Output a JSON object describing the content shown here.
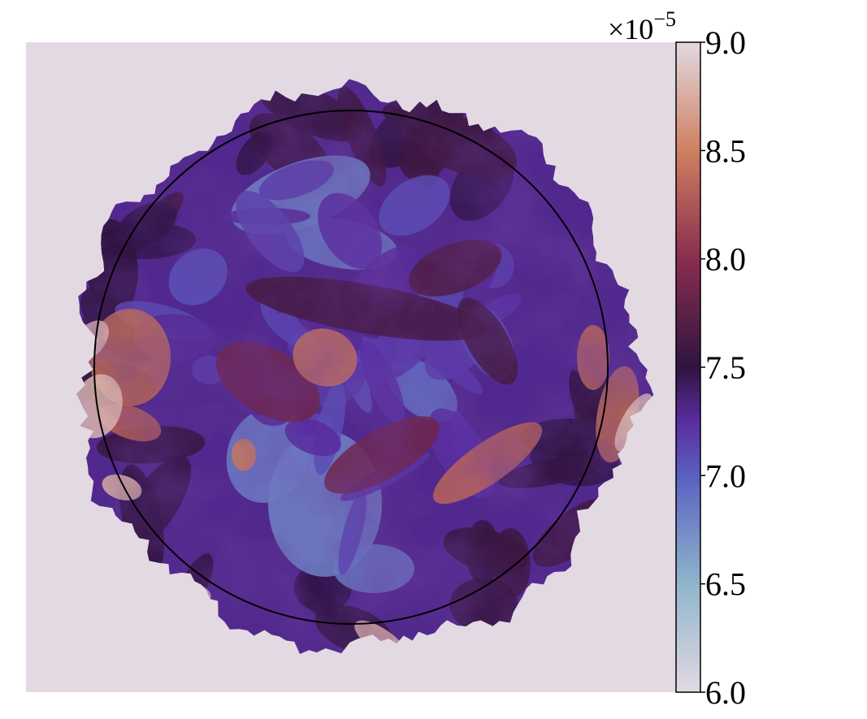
{
  "chart_data": {
    "type": "heatmap",
    "title": "",
    "xlabel": "",
    "ylabel": "",
    "field": "turbulent spherical blob, cross-section",
    "colormap": {
      "name": "twilight (lower half)",
      "stops": [
        {
          "value": 6.0,
          "color": "#e2d9e2"
        },
        {
          "value": 6.5,
          "color": "#8fb5cc"
        },
        {
          "value": 7.0,
          "color": "#5a60c2"
        },
        {
          "value": 7.25,
          "color": "#5a2da0"
        },
        {
          "value": 7.5,
          "color": "#2f1440"
        },
        {
          "value": 8.0,
          "color": "#8a2d4f"
        },
        {
          "value": 8.5,
          "color": "#cf8060"
        },
        {
          "value": 9.0,
          "color": "#e2d9e2"
        }
      ]
    },
    "colorbar": {
      "range": [
        6.0,
        9.0
      ],
      "ticks": [
        6.0,
        6.5,
        7.0,
        7.5,
        8.0,
        8.5,
        9.0
      ],
      "tick_labels": [
        "6.0",
        "6.5",
        "7.0",
        "7.5",
        "8.0",
        "8.5",
        "9.0"
      ],
      "multiplier_base": "×10",
      "multiplier_exponent": "−5"
    },
    "background_value": 9.0,
    "reference_circle": {
      "stroke": "#000000"
    },
    "axes_visible": false,
    "grid": false
  }
}
